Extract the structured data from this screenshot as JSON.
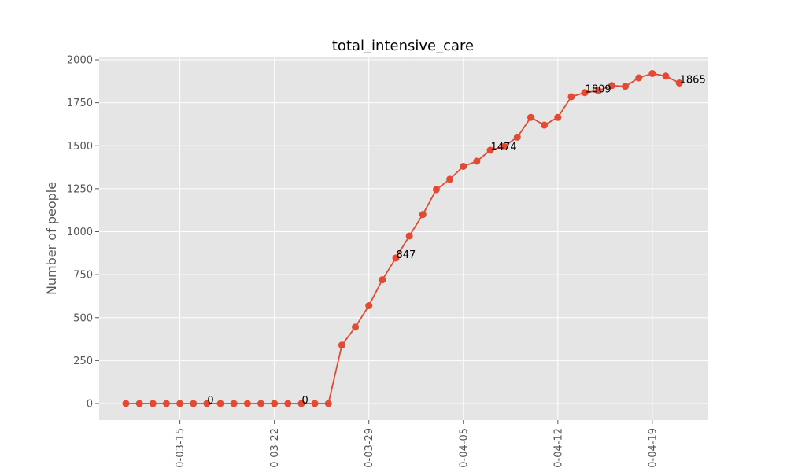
{
  "chart_data": {
    "type": "line",
    "title": "total_intensive_care",
    "xlabel": "",
    "ylabel": "Number of people",
    "x_start_label": "03-11",
    "x": [
      "03-11",
      "03-12",
      "03-13",
      "03-14",
      "03-15",
      "03-16",
      "03-17",
      "03-18",
      "03-19",
      "03-20",
      "03-21",
      "03-22",
      "03-23",
      "03-24",
      "03-25",
      "03-26",
      "03-27",
      "03-28",
      "03-29",
      "03-30",
      "03-31",
      "04-01",
      "04-02",
      "04-03",
      "04-04",
      "04-05",
      "04-06",
      "04-07",
      "04-08",
      "04-09",
      "04-10",
      "04-11",
      "04-12",
      "04-13",
      "04-14",
      "04-15",
      "04-16",
      "04-17",
      "04-18",
      "04-19",
      "04-20",
      "04-21"
    ],
    "series": [
      {
        "values": [
          0,
          0,
          0,
          0,
          0,
          0,
          0,
          0,
          0,
          0,
          0,
          0,
          0,
          0,
          0,
          0,
          340,
          445,
          570,
          720,
          847,
          975,
          1100,
          1245,
          1305,
          1380,
          1410,
          1474,
          1495,
          1550,
          1665,
          1620,
          1665,
          1785,
          1809,
          1820,
          1850,
          1845,
          1895,
          1920,
          1905,
          1865
        ]
      }
    ],
    "annotations": [
      {
        "x": "03-17",
        "y": 0,
        "text": "0"
      },
      {
        "x": "03-24",
        "y": 0,
        "text": "0"
      },
      {
        "x": "03-31",
        "y": 847,
        "text": "847"
      },
      {
        "x": "04-07",
        "y": 1474,
        "text": "1474"
      },
      {
        "x": "04-14",
        "y": 1809,
        "text": "1809"
      },
      {
        "x": "04-21",
        "y": 1865,
        "text": "1865"
      }
    ],
    "x_tick_labels": [
      "0-03-15",
      "0-03-22",
      "0-03-29",
      "0-04-05",
      "0-04-12",
      "0-04-19"
    ],
    "x_tick_dates": [
      "03-15",
      "03-22",
      "03-29",
      "04-05",
      "04-12",
      "04-19"
    ],
    "y_ticks": [
      0,
      250,
      500,
      750,
      1000,
      1250,
      1500,
      1750,
      2000
    ],
    "ylim": [
      -100,
      2050
    ],
    "grid": true,
    "colors": {
      "line": "#e24a33",
      "plot_background": "#e5e5e5",
      "grid": "#ffffff",
      "page_background": "#ffffff"
    }
  }
}
